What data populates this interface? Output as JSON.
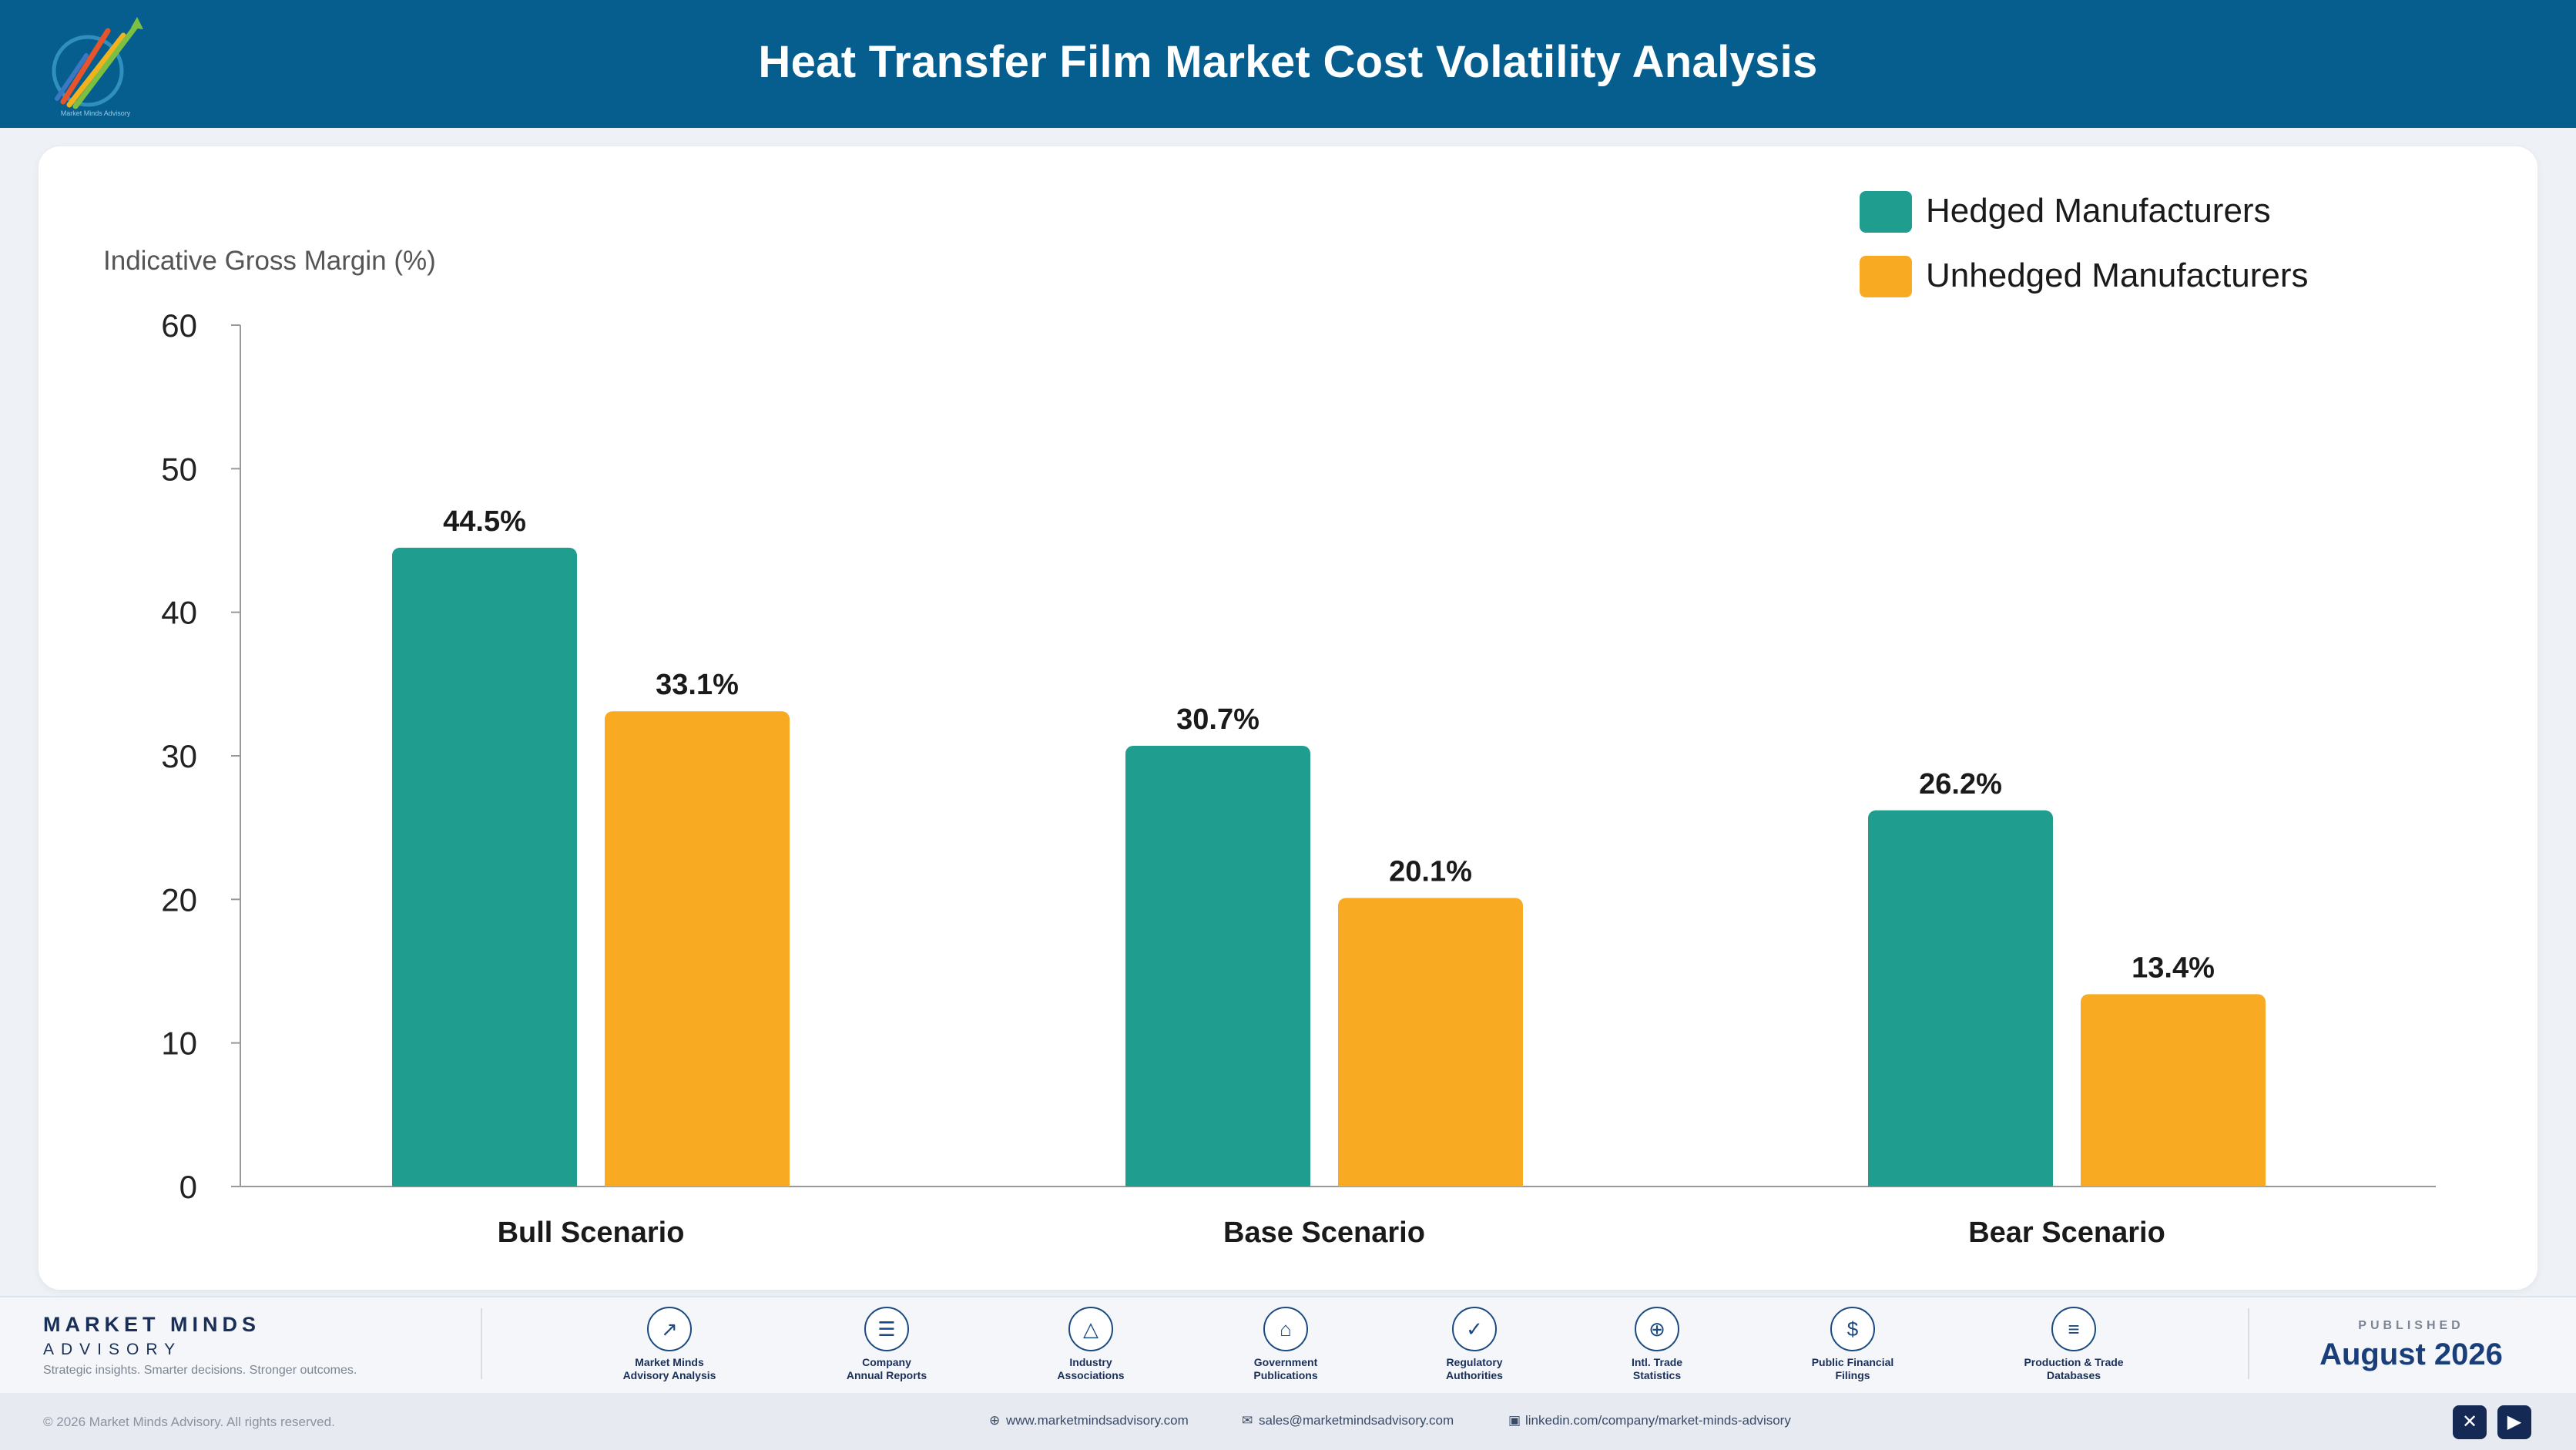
{
  "header": {
    "title": "Heat Transfer Film Market Cost Volatility Analysis",
    "logo_caption": "Market Minds Advisory"
  },
  "colors": {
    "header_bg": "#065e8f",
    "hedged": "#1f9e8f",
    "unhedged": "#f8ab22",
    "navy": "#1a2f58"
  },
  "chart_data": {
    "type": "bar",
    "title": "",
    "ylabel": "Indicative Gross Margin (%)",
    "xlabel": "",
    "categories": [
      "Bull Scenario",
      "Base Scenario",
      "Bear Scenario"
    ],
    "series": [
      {
        "name": "Hedged Manufacturers",
        "values": [
          44.5,
          30.7,
          26.2
        ],
        "labels": [
          "44.5%",
          "30.7%",
          "26.2%"
        ],
        "color": "#1f9e8f"
      },
      {
        "name": "Unhedged Manufacturers",
        "values": [
          33.1,
          20.1,
          13.4
        ],
        "labels": [
          "33.1%",
          "20.1%",
          "13.4%"
        ],
        "color": "#f8ab22"
      }
    ],
    "ylim": [
      0,
      60
    ],
    "yticks": [
      0,
      10,
      20,
      30,
      40,
      50,
      60
    ],
    "grid": false,
    "legend": "top-right"
  },
  "footer": {
    "brand_name": "MARKET MINDS",
    "brand_sub": "ADVISORY",
    "tagline": "Strategic insights. Smarter decisions. Stronger outcomes.",
    "sources": [
      {
        "icon": "trend-icon",
        "glyph": "↗",
        "line1": "Market Minds",
        "line2": "Advisory Analysis"
      },
      {
        "icon": "report-icon",
        "glyph": "☰",
        "line1": "Company",
        "line2": "Annual Reports"
      },
      {
        "icon": "network-icon",
        "glyph": "△",
        "line1": "Industry",
        "line2": "Associations"
      },
      {
        "icon": "government-icon",
        "glyph": "⌂",
        "line1": "Government",
        "line2": "Publications"
      },
      {
        "icon": "shield-icon",
        "glyph": "✓",
        "line1": "Regulatory",
        "line2": "Authorities"
      },
      {
        "icon": "globe-icon",
        "glyph": "⊕",
        "line1": "Intl. Trade",
        "line2": "Statistics"
      },
      {
        "icon": "dollar-icon",
        "glyph": "$",
        "line1": "Public Financial",
        "line2": "Filings"
      },
      {
        "icon": "database-icon",
        "glyph": "≡",
        "line1": "Production & Trade",
        "line2": "Databases"
      }
    ],
    "published_label": "PUBLISHED",
    "published_date": "August 2026",
    "copyright": "© 2026 Market Minds Advisory. All rights reserved.",
    "website": "www.marketmindsadvisory.com",
    "email": "sales@marketmindsadvisory.com",
    "linkedin": "linkedin.com/company/market-minds-advisory"
  }
}
